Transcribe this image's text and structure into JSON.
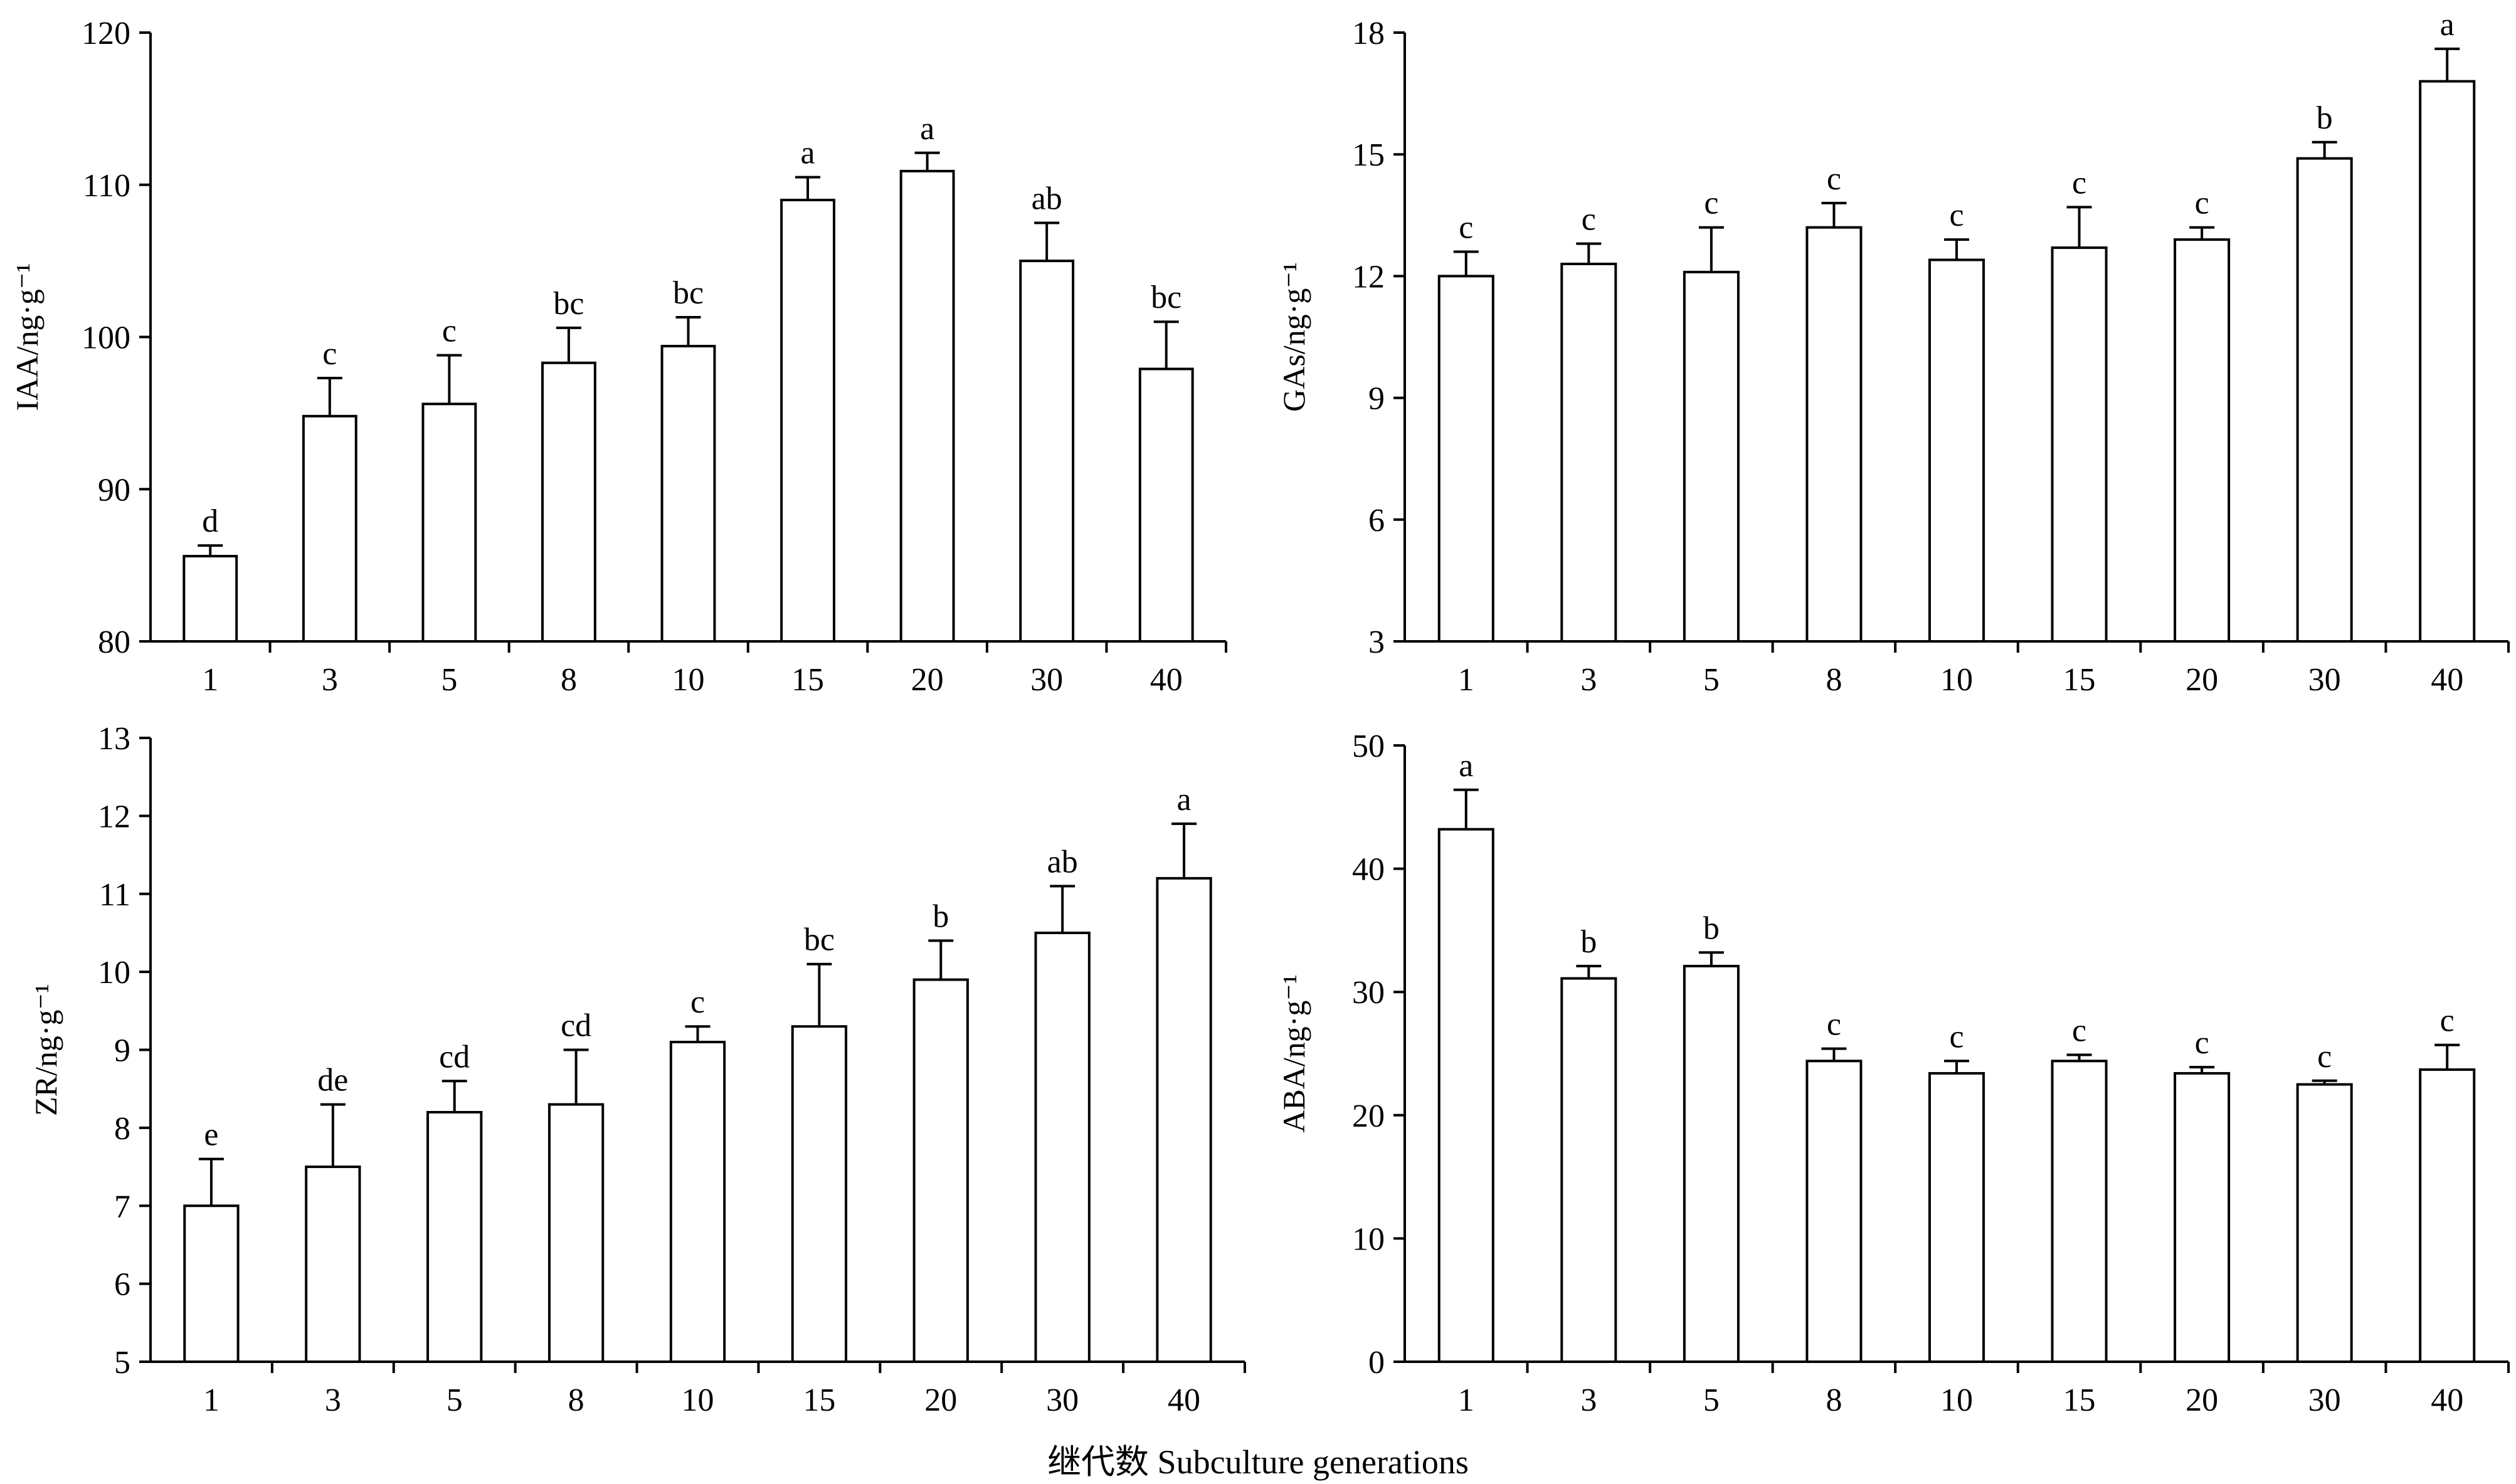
{
  "figure": {
    "xlabel": "继代数  Subculture generations"
  },
  "chart_data": [
    {
      "type": "bar",
      "ylabel": "IAA/ng·g⁻¹",
      "categories": [
        "1",
        "3",
        "5",
        "8",
        "10",
        "15",
        "20",
        "30",
        "40"
      ],
      "values": [
        85.6,
        94.8,
        95.6,
        98.3,
        99.4,
        109.0,
        110.9,
        105.0,
        97.9
      ],
      "error": [
        0.7,
        2.5,
        3.2,
        2.3,
        1.9,
        1.5,
        1.2,
        2.5,
        3.1
      ],
      "significance": [
        "d",
        "c",
        "c",
        "bc",
        "bc",
        "a",
        "a",
        "ab",
        "bc"
      ],
      "ylim": [
        80,
        120
      ],
      "yticks": [
        80,
        90,
        100,
        110,
        120
      ]
    },
    {
      "type": "bar",
      "ylabel": "GAs/ng·g⁻¹",
      "categories": [
        "1",
        "3",
        "5",
        "8",
        "10",
        "15",
        "20",
        "30",
        "40"
      ],
      "values": [
        12.0,
        12.3,
        12.1,
        13.2,
        12.4,
        12.7,
        12.9,
        14.9,
        16.8
      ],
      "error": [
        0.6,
        0.5,
        1.1,
        0.6,
        0.5,
        1.0,
        0.3,
        0.4,
        0.8
      ],
      "significance": [
        "c",
        "c",
        "c",
        "c",
        "c",
        "c",
        "c",
        "b",
        "a"
      ],
      "ylim": [
        3,
        18
      ],
      "yticks": [
        3,
        6,
        9,
        12,
        15,
        18
      ]
    },
    {
      "type": "bar",
      "ylabel": "ZR/ng·g⁻¹",
      "categories": [
        "1",
        "3",
        "5",
        "8",
        "10",
        "15",
        "20",
        "30",
        "40"
      ],
      "values": [
        7.0,
        7.5,
        8.2,
        8.3,
        9.1,
        9.3,
        9.9,
        10.5,
        11.2
      ],
      "error": [
        0.6,
        0.8,
        0.4,
        0.7,
        0.2,
        0.8,
        0.5,
        0.6,
        0.7
      ],
      "significance": [
        "e",
        "de",
        "cd",
        "cd",
        "c",
        "bc",
        "b",
        "ab",
        "a"
      ],
      "ylim": [
        5,
        13
      ],
      "yticks": [
        5,
        6,
        7,
        8,
        9,
        10,
        11,
        12,
        13
      ]
    },
    {
      "type": "bar",
      "ylabel": "ABA/ng·g⁻¹",
      "categories": [
        "1",
        "3",
        "5",
        "8",
        "10",
        "15",
        "20",
        "30",
        "40"
      ],
      "values": [
        43.2,
        31.1,
        32.1,
        24.4,
        23.4,
        24.4,
        23.4,
        22.5,
        23.7
      ],
      "error": [
        3.2,
        1.0,
        1.1,
        1.0,
        1.0,
        0.5,
        0.5,
        0.3,
        2.0
      ],
      "significance": [
        "a",
        "b",
        "b",
        "c",
        "c",
        "c",
        "c",
        "c",
        "c"
      ],
      "ylim": [
        0,
        50
      ],
      "yticks": [
        0,
        10,
        20,
        30,
        40,
        50
      ]
    }
  ]
}
